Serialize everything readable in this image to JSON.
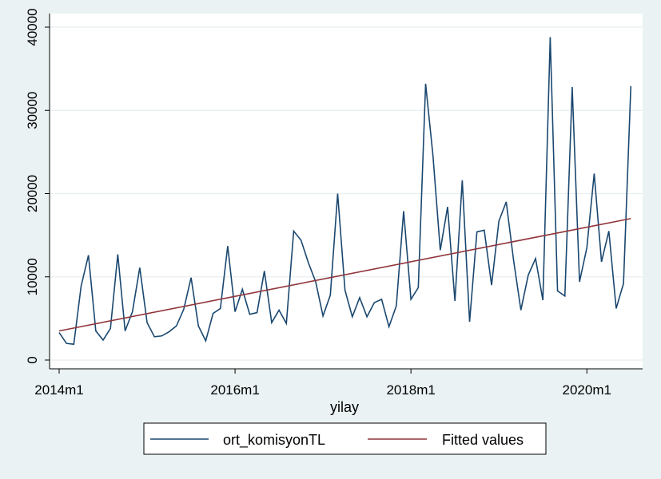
{
  "colors": {
    "background": "#eaf2f3",
    "plot_background": "#ffffff",
    "gridline": "#e8eef0",
    "series_line": "#1a476f",
    "fitted_line": "#90353b"
  },
  "chart_data": {
    "type": "line",
    "title": "",
    "xlabel": "yilay",
    "ylabel": "",
    "xlim": [
      "2014m1",
      "2020m7"
    ],
    "ylim": [
      0,
      40000
    ],
    "y_ticks": [
      0,
      10000,
      20000,
      30000,
      40000
    ],
    "x_ticks": [
      "2014m1",
      "2016m1",
      "2018m1",
      "2020m1"
    ],
    "grid": "horizontal",
    "legend": {
      "position": "bottom",
      "entries": [
        "ort_komisyonTL",
        "Fitted values"
      ]
    },
    "series": [
      {
        "name": "ort_komisyonTL",
        "style": "line",
        "x": [
          "2014m1",
          "2014m2",
          "2014m3",
          "2014m4",
          "2014m5",
          "2014m6",
          "2014m7",
          "2014m8",
          "2014m9",
          "2014m10",
          "2014m11",
          "2014m12",
          "2015m1",
          "2015m2",
          "2015m3",
          "2015m4",
          "2015m5",
          "2015m6",
          "2015m7",
          "2015m8",
          "2015m9",
          "2015m10",
          "2015m11",
          "2015m12",
          "2016m1",
          "2016m2",
          "2016m3",
          "2016m4",
          "2016m5",
          "2016m6",
          "2016m7",
          "2016m8",
          "2016m9",
          "2016m10",
          "2016m11",
          "2016m12",
          "2017m1",
          "2017m2",
          "2017m3",
          "2017m4",
          "2017m5",
          "2017m6",
          "2017m7",
          "2017m8",
          "2017m9",
          "2017m10",
          "2017m11",
          "2017m12",
          "2018m1",
          "2018m2",
          "2018m3",
          "2018m4",
          "2018m5",
          "2018m6",
          "2018m7",
          "2018m8",
          "2018m9",
          "2018m10",
          "2018m11",
          "2018m12",
          "2019m1",
          "2019m2",
          "2019m3",
          "2019m4",
          "2019m5",
          "2019m6",
          "2019m7",
          "2019m8",
          "2019m9",
          "2019m10",
          "2019m11",
          "2019m12",
          "2020m1",
          "2020m2",
          "2020m3",
          "2020m4",
          "2020m5",
          "2020m6",
          "2020m7"
        ],
        "values": [
          3300,
          2000,
          1900,
          8900,
          12600,
          3500,
          2400,
          3800,
          12700,
          3500,
          5800,
          11100,
          4500,
          2800,
          2900,
          3400,
          4100,
          6100,
          9900,
          4100,
          2300,
          5600,
          6200,
          13700,
          5800,
          8500,
          5500,
          5700,
          10700,
          4500,
          6000,
          4400,
          15500,
          14400,
          11700,
          9400,
          5300,
          7800,
          20000,
          8400,
          5200,
          7500,
          5200,
          6900,
          7300,
          4000,
          6500,
          17900,
          7300,
          8700,
          33200,
          24600,
          13200,
          18400,
          7100,
          21600,
          4600,
          15400,
          15600,
          9000,
          16700,
          19000,
          12000,
          6000,
          10200,
          12200,
          7200,
          38800,
          8300,
          7700,
          32800,
          9400,
          13500,
          22400,
          11800,
          15500,
          6200,
          9200,
          32900
        ]
      },
      {
        "name": "Fitted values",
        "style": "line",
        "x": [
          "2014m1",
          "2020m7"
        ],
        "values": [
          3500,
          17000
        ]
      }
    ]
  }
}
